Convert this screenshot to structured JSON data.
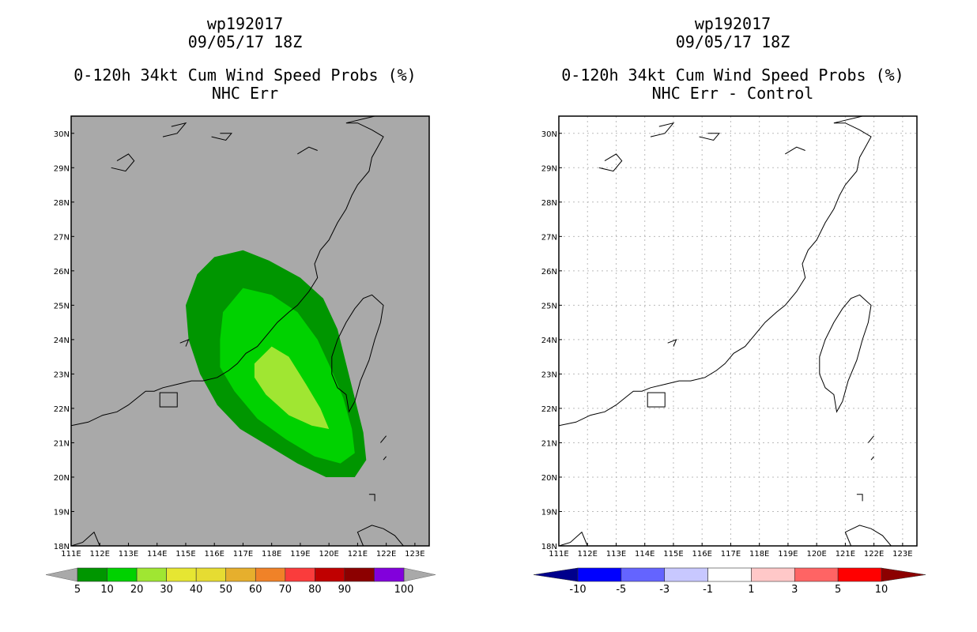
{
  "panels": [
    {
      "title_lines": [
        "wp192017",
        "09/05/17 18Z",
        "0-120h 34kt Cum Wind Speed Probs (%)",
        "NHC Err"
      ],
      "background": "#a9a9a9"
    },
    {
      "title_lines": [
        "wp192017",
        "09/05/17 18Z",
        "0-120h 34kt Cum Wind Speed Probs (%)",
        "NHC Err - Control"
      ],
      "background": "#ffffff"
    }
  ],
  "chart_data": [
    {
      "type": "contour-map",
      "title": "0-120h 34kt Cum Wind Speed Probs (%) — NHC Err",
      "storm": "wp192017",
      "valid": "09/05/17 18Z",
      "x_ticks": [
        "111E",
        "112E",
        "113E",
        "114E",
        "115E",
        "116E",
        "117E",
        "118E",
        "119E",
        "120E",
        "121E",
        "122E",
        "123E"
      ],
      "y_ticks": [
        "18N",
        "19N",
        "20N",
        "21N",
        "22N",
        "23N",
        "24N",
        "25N",
        "26N",
        "27N",
        "28N",
        "29N",
        "30N"
      ],
      "lon_range": [
        111,
        123.5
      ],
      "lat_range": [
        18,
        30.5
      ],
      "levels": [
        {
          "label": "5",
          "min": 5,
          "max": 10,
          "color": "#009600",
          "polygon": [
            [
              115,
              25
            ],
            [
              115.4,
              25.9
            ],
            [
              116,
              26.4
            ],
            [
              117,
              26.6
            ],
            [
              117.9,
              26.3
            ],
            [
              119,
              25.8
            ],
            [
              119.8,
              25.2
            ],
            [
              120.3,
              24.3
            ],
            [
              120.6,
              23.3
            ],
            [
              120.9,
              22.3
            ],
            [
              121.2,
              21.3
            ],
            [
              121.3,
              20.5
            ],
            [
              120.9,
              20.0
            ],
            [
              119.9,
              20.0
            ],
            [
              118.9,
              20.4
            ],
            [
              117.9,
              20.9
            ],
            [
              116.9,
              21.4
            ],
            [
              116.1,
              22.1
            ],
            [
              115.5,
              23.0
            ],
            [
              115.1,
              24.0
            ]
          ]
        },
        {
          "label": "10",
          "min": 10,
          "max": 20,
          "color": "#00d200",
          "polygon": [
            [
              116.3,
              24.8
            ],
            [
              117,
              25.5
            ],
            [
              118,
              25.3
            ],
            [
              118.9,
              24.8
            ],
            [
              119.6,
              24.0
            ],
            [
              120.1,
              23.1
            ],
            [
              120.5,
              22.3
            ],
            [
              120.8,
              21.4
            ],
            [
              120.9,
              20.7
            ],
            [
              120.4,
              20.4
            ],
            [
              119.5,
              20.6
            ],
            [
              118.5,
              21.1
            ],
            [
              117.5,
              21.7
            ],
            [
              116.7,
              22.5
            ],
            [
              116.2,
              23.2
            ],
            [
              116.2,
              24.0
            ]
          ]
        },
        {
          "label": "20",
          "min": 20,
          "max": 30,
          "color": "#a0e632",
          "polygon": [
            [
              117.4,
              23.3
            ],
            [
              118.0,
              23.8
            ],
            [
              118.6,
              23.5
            ],
            [
              119.2,
              22.7
            ],
            [
              119.7,
              22.0
            ],
            [
              120.0,
              21.4
            ],
            [
              119.4,
              21.5
            ],
            [
              118.6,
              21.8
            ],
            [
              117.8,
              22.4
            ],
            [
              117.4,
              22.9
            ]
          ]
        }
      ]
    },
    {
      "type": "contour-map",
      "title": "0-120h 34kt Cum Wind Speed Probs (%) — NHC Err - Control",
      "storm": "wp192017",
      "valid": "09/05/17 18Z",
      "x_ticks": [
        "111E",
        "112E",
        "113E",
        "114E",
        "115E",
        "116E",
        "117E",
        "118E",
        "119E",
        "120E",
        "121E",
        "122E",
        "123E"
      ],
      "y_ticks": [
        "18N",
        "19N",
        "20N",
        "21N",
        "22N",
        "23N",
        "24N",
        "25N",
        "26N",
        "27N",
        "28N",
        "29N",
        "30N"
      ],
      "lon_range": [
        111,
        123.5
      ],
      "lat_range": [
        18,
        30.5
      ],
      "grid": true,
      "levels": []
    }
  ],
  "colorbars": [
    {
      "labels": [
        "5",
        "10",
        "20",
        "30",
        "40",
        "50",
        "60",
        "70",
        "80",
        "90",
        "100"
      ],
      "colors": [
        "#009600",
        "#00d200",
        "#a0e632",
        "#e6e632",
        "#e6dc32",
        "#e6af2d",
        "#f08228",
        "#fa3c3c",
        "#c00000",
        "#8c0000",
        "#8200dc"
      ],
      "left_arrow_color": "#a9a9a9",
      "right_arrow_color": "#a9a9a9"
    },
    {
      "labels": [
        "-10",
        "-5",
        "-3",
        "-1",
        "1",
        "3",
        "5",
        "10"
      ],
      "colors": [
        "#0000ff",
        "#6464ff",
        "#c8c8ff",
        "#ffffff",
        "#ffc8c8",
        "#ff6464",
        "#ff0000"
      ],
      "left_arrow_color": "#00008c",
      "right_arrow_color": "#8c0000"
    }
  ]
}
